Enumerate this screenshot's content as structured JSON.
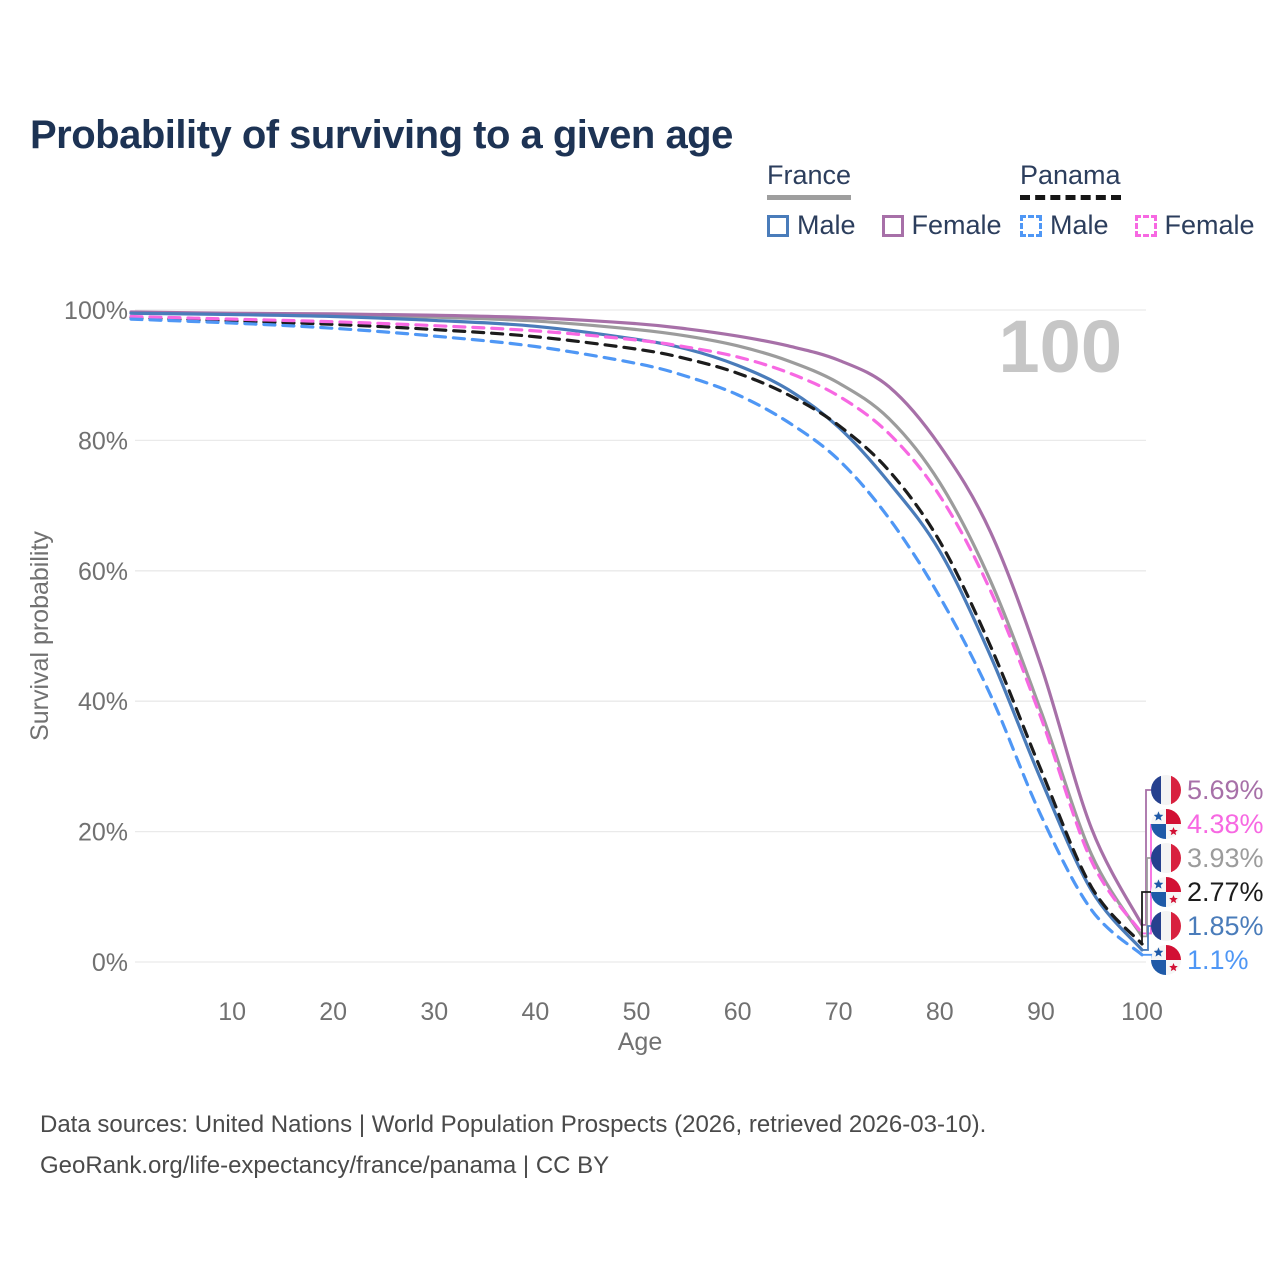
{
  "page": {
    "title": "Probability of surviving to a given age"
  },
  "legend": {
    "france": {
      "title": "France",
      "male_label": "Male",
      "female_label": "Female"
    },
    "panama": {
      "title": "Panama",
      "male_label": "Male",
      "female_label": "Female"
    }
  },
  "footer": {
    "line1": "Data sources: United Nations | World Population Prospects (2026, retrieved 2026-03-10).",
    "line2": "GeoRank.org/life-expectancy/france/panama | CC BY"
  },
  "colors": {
    "title_text": "#1d3354",
    "legend_text": "#2c3e5d",
    "axis_text": "#717171",
    "gridline": "#eaeaea",
    "watermark": "#c6c6c6",
    "france_underline": "#9e9e9e",
    "panama_underline": "#161616",
    "flag_france_blue": "#26418e",
    "flag_france_red": "#d8213f",
    "flag_panama_blue": "#1f5aa8",
    "flag_panama_red": "#d21034"
  },
  "chart_data": {
    "type": "line",
    "title": "Probability of surviving to a given age",
    "xlabel": "Age",
    "ylabel": "Survival probability",
    "xlim": [
      0,
      100
    ],
    "ylim": [
      0,
      100
    ],
    "grid": "horizontal",
    "legend_position": "top-right",
    "watermark": "100",
    "x_ticks": [
      10,
      20,
      30,
      40,
      50,
      60,
      70,
      80,
      90,
      100
    ],
    "y_tick_values": [
      0,
      20,
      40,
      60,
      80,
      100
    ],
    "y_tick_labels": [
      "0%",
      "20%",
      "40%",
      "60%",
      "80%",
      "100%"
    ],
    "x": [
      0,
      10,
      20,
      30,
      40,
      50,
      55,
      60,
      65,
      70,
      75,
      80,
      85,
      90,
      95,
      100
    ],
    "series": [
      {
        "id": "france-female",
        "name": "France Female",
        "country": "France",
        "sex": "Female",
        "style": "solid",
        "color": "#a770a8",
        "end_label": "5.69%",
        "flag": "france",
        "values": [
          99.7,
          99.5,
          99.4,
          99.2,
          98.8,
          97.9,
          97.1,
          96.0,
          94.5,
          92.3,
          88.2,
          79.2,
          66.0,
          45.5,
          20.5,
          5.69
        ]
      },
      {
        "id": "panama-female",
        "name": "Panama Female",
        "country": "Panama",
        "sex": "Female",
        "style": "dashed",
        "color": "#f768e2",
        "end_label": "4.38%",
        "flag": "panama",
        "values": [
          99.0,
          98.6,
          98.2,
          97.6,
          96.8,
          95.4,
          94.3,
          92.8,
          90.4,
          86.8,
          81.0,
          71.5,
          57.0,
          37.5,
          15.5,
          4.38
        ]
      },
      {
        "id": "france-all",
        "name": "France (all)",
        "country": "France",
        "sex": "All",
        "style": "solid",
        "color": "#9c9c9c",
        "end_label": "3.93%",
        "flag": "france",
        "values": [
          99.6,
          99.4,
          99.2,
          98.9,
          98.3,
          97.0,
          96.0,
          94.5,
          92.2,
          88.8,
          83.3,
          73.5,
          58.5,
          38.5,
          16.5,
          3.93
        ]
      },
      {
        "id": "panama-all",
        "name": "Panama (all)",
        "country": "Panama",
        "sex": "All",
        "style": "dashed",
        "color": "#1c1c1c",
        "end_label": "2.77%",
        "flag": "panama",
        "values": [
          98.8,
          98.3,
          97.8,
          97.0,
          95.9,
          94.0,
          92.5,
          90.3,
          87.0,
          82.3,
          75.3,
          64.5,
          48.5,
          29.5,
          11.5,
          2.77
        ]
      },
      {
        "id": "france-male",
        "name": "France Male",
        "country": "France",
        "sex": "Male",
        "style": "solid",
        "color": "#4a7cba",
        "end_label": "1.85%",
        "flag": "france",
        "values": [
          99.5,
          99.3,
          99.0,
          98.4,
          97.5,
          95.5,
          94.0,
          91.5,
          87.8,
          82.0,
          73.5,
          63.0,
          47.0,
          28.0,
          11.0,
          1.85
        ]
      },
      {
        "id": "panama-male",
        "name": "Panama Male",
        "country": "Panama",
        "sex": "Male",
        "style": "dashed",
        "color": "#4f97f5",
        "end_label": "1.1%",
        "flag": "panama",
        "values": [
          98.6,
          98.0,
          97.2,
          96.0,
          94.4,
          91.8,
          89.8,
          87.0,
          82.8,
          77.0,
          68.0,
          56.0,
          41.0,
          22.5,
          8.0,
          1.1
        ]
      }
    ]
  }
}
